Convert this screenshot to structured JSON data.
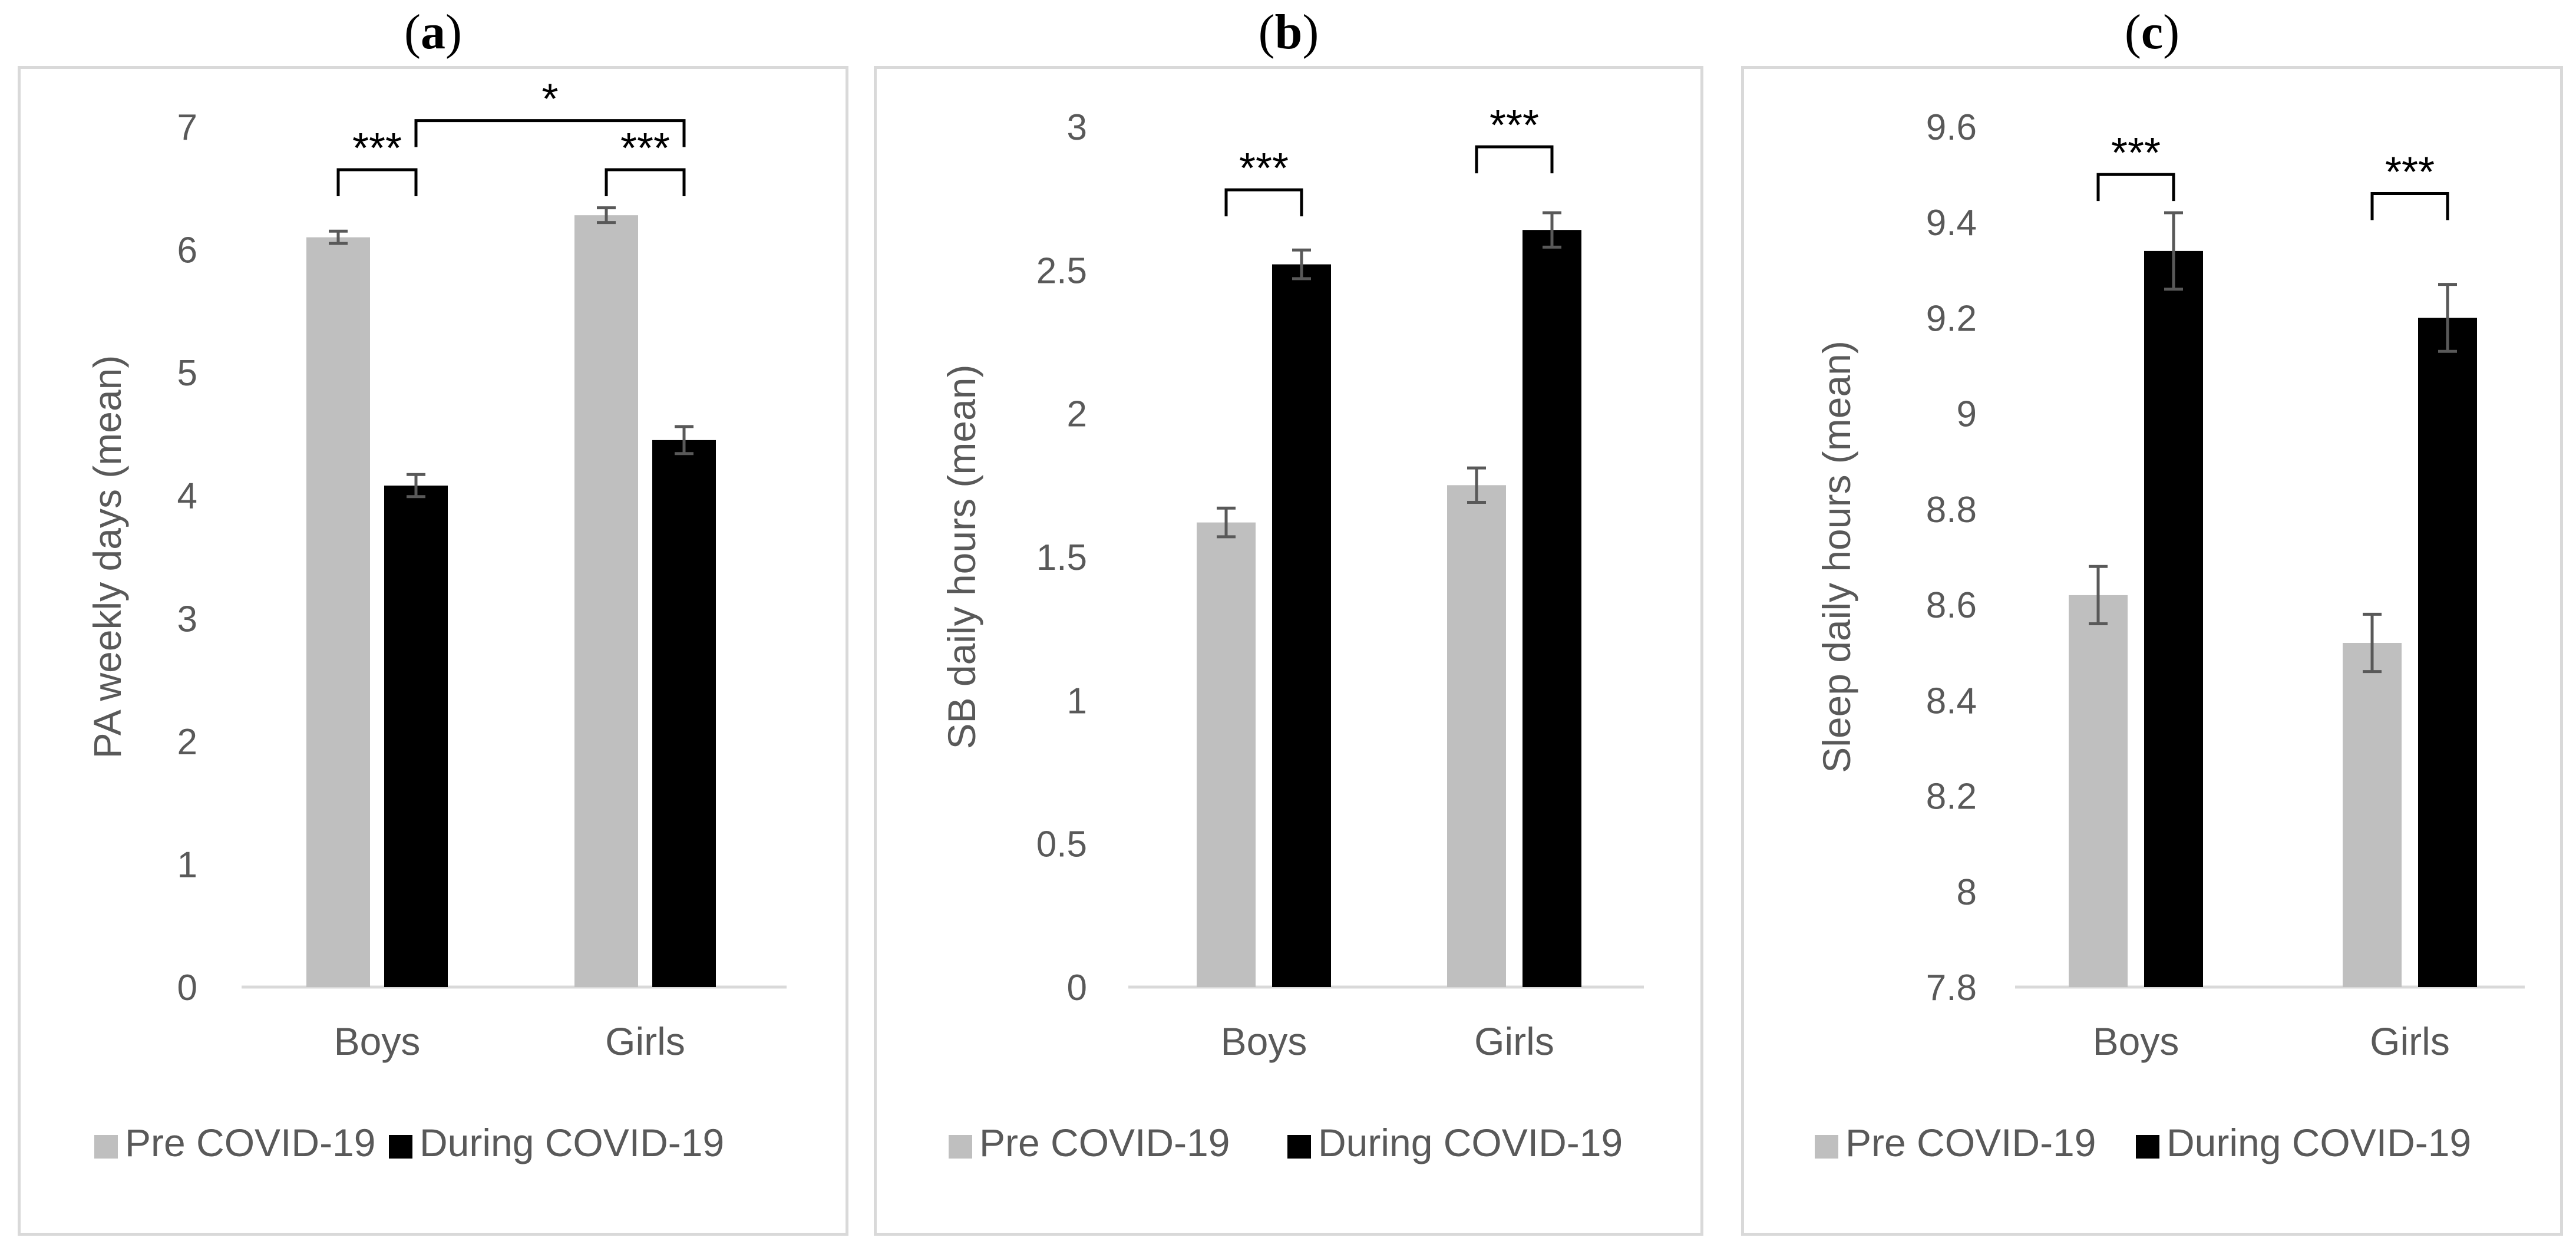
{
  "chart_data": [
    {
      "type": "bar",
      "panel_label": "a",
      "ylabel": "PA weekly days (mean)",
      "xlabel": "",
      "categories": [
        "Boys",
        "Girls"
      ],
      "ylim": [
        0,
        7
      ],
      "yticks": [
        0,
        1,
        2,
        3,
        4,
        5,
        6,
        7
      ],
      "series": [
        {
          "name": "Pre COVID-19",
          "color": "#bfbfbf",
          "values": [
            6.1,
            6.28
          ],
          "errors": [
            0.05,
            0.06
          ]
        },
        {
          "name": "During COVID-19",
          "color": "#000000",
          "values": [
            4.08,
            4.45
          ],
          "errors": [
            0.09,
            0.11
          ]
        }
      ],
      "annotations": [
        {
          "text": "***",
          "between": [
            [
              0,
              0
            ],
            [
              0,
              1
            ]
          ],
          "level": 6.65
        },
        {
          "text": "***",
          "between": [
            [
              1,
              0
            ],
            [
              1,
              1
            ]
          ],
          "level": 6.65
        },
        {
          "text": "*",
          "between": [
            [
              0,
              1
            ],
            [
              1,
              1
            ]
          ],
          "level": 7.05
        }
      ],
      "legend": "bottom"
    },
    {
      "type": "bar",
      "panel_label": "b",
      "ylabel": "SB daily hours (mean)",
      "xlabel": "",
      "categories": [
        "Boys",
        "Girls"
      ],
      "ylim": [
        0,
        3
      ],
      "yticks": [
        0,
        0.5,
        1,
        1.5,
        2,
        2.5,
        3
      ],
      "series": [
        {
          "name": "Pre COVID-19",
          "color": "#bfbfbf",
          "values": [
            1.62,
            1.75
          ],
          "errors": [
            0.05,
            0.06
          ]
        },
        {
          "name": "During COVID-19",
          "color": "#000000",
          "values": [
            2.52,
            2.64
          ],
          "errors": [
            0.05,
            0.06
          ]
        }
      ],
      "annotations": [
        {
          "text": "***",
          "between": [
            [
              0,
              0
            ],
            [
              0,
              1
            ]
          ],
          "level": 2.78
        },
        {
          "text": "***",
          "between": [
            [
              1,
              0
            ],
            [
              1,
              1
            ]
          ],
          "level": 2.93
        }
      ],
      "legend": "bottom"
    },
    {
      "type": "bar",
      "panel_label": "c",
      "ylabel": "Sleep daily hours (mean)",
      "xlabel": "",
      "categories": [
        "Boys",
        "Girls"
      ],
      "ylim": [
        7.8,
        9.6
      ],
      "yticks": [
        7.8,
        8,
        8.2,
        8.4,
        8.6,
        8.8,
        9,
        9.2,
        9.4,
        9.6
      ],
      "series": [
        {
          "name": "Pre COVID-19",
          "color": "#bfbfbf",
          "values": [
            8.62,
            8.52
          ],
          "errors": [
            0.06,
            0.06
          ]
        },
        {
          "name": "During COVID-19",
          "color": "#000000",
          "values": [
            9.34,
            9.2
          ],
          "errors": [
            0.08,
            0.07
          ]
        }
      ],
      "annotations": [
        {
          "text": "***",
          "between": [
            [
              0,
              0
            ],
            [
              0,
              1
            ]
          ],
          "level": 9.5
        },
        {
          "text": "***",
          "between": [
            [
              1,
              0
            ],
            [
              1,
              1
            ]
          ],
          "level": 9.46
        }
      ],
      "legend": "bottom"
    }
  ]
}
